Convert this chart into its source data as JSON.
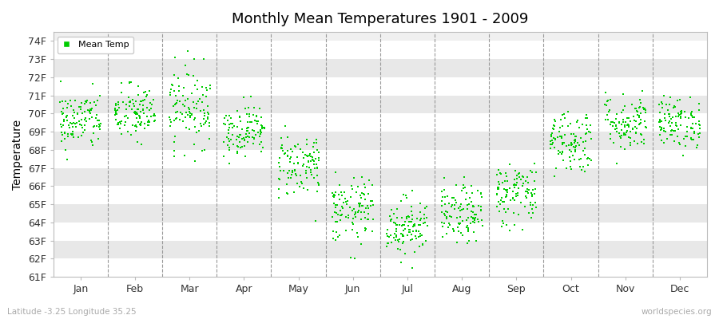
{
  "title": "Monthly Mean Temperatures 1901 - 2009",
  "ylabel": "Temperature",
  "xlabel_labels": [
    "Jan",
    "Feb",
    "Mar",
    "Apr",
    "May",
    "Jun",
    "Jul",
    "Aug",
    "Sep",
    "Oct",
    "Nov",
    "Dec"
  ],
  "ytick_labels": [
    "61F",
    "62F",
    "63F",
    "64F",
    "65F",
    "66F",
    "67F",
    "68F",
    "69F",
    "70F",
    "71F",
    "72F",
    "73F",
    "74F"
  ],
  "ytick_values": [
    61,
    62,
    63,
    64,
    65,
    66,
    67,
    68,
    69,
    70,
    71,
    72,
    73,
    74
  ],
  "ylim": [
    61,
    74.5
  ],
  "dot_color": "#00cc00",
  "legend_label": "Mean Temp",
  "footer_left": "Latitude -3.25 Longitude 35.25",
  "footer_right": "worldspecies.org",
  "background_color": "#ffffff",
  "plot_bg_color": "#f0f0f0",
  "band_colors": [
    "#ffffff",
    "#e8e8e8"
  ],
  "monthly_means": [
    69.6,
    70.0,
    70.4,
    69.1,
    67.2,
    64.6,
    63.8,
    64.4,
    65.6,
    68.5,
    69.5,
    69.5
  ],
  "monthly_stds": [
    0.8,
    0.8,
    1.1,
    0.7,
    0.9,
    0.9,
    0.8,
    0.8,
    0.9,
    0.9,
    0.8,
    0.7
  ],
  "n_years": 109,
  "scatter_marker": "s",
  "scatter_size": 3,
  "scatter_alpha": 1.0,
  "dashed_line_positions": [
    1.5,
    2.5,
    3.5,
    4.5,
    5.5,
    6.5,
    7.5,
    8.5,
    9.5,
    10.5,
    11.5
  ],
  "dashed_color": "#999999",
  "xlim": [
    0.5,
    12.5
  ]
}
